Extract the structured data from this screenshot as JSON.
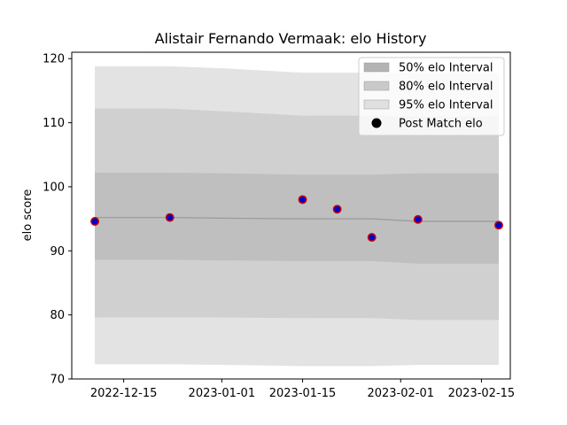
{
  "chart_data": {
    "type": "area",
    "title": "Alistair Fernando Vermaak: elo History",
    "xlabel": "",
    "ylabel": "elo score",
    "x_dates": [
      "2022-12-10",
      "2022-12-23",
      "2023-01-01",
      "2023-01-15",
      "2023-01-21",
      "2023-01-27",
      "2023-02-04",
      "2023-02-18"
    ],
    "xtick_labels": [
      "2022-12-15",
      "2023-01-01",
      "2023-01-15",
      "2023-02-01",
      "2023-02-15"
    ],
    "ylim": [
      70,
      121
    ],
    "yticks": [
      70,
      80,
      90,
      100,
      110,
      120
    ],
    "grid": false,
    "legend_position": "top-right",
    "series": [
      {
        "name": "95% elo Interval",
        "kind": "band",
        "color": "#e3e3e3",
        "lower": [
          72.3,
          72.3,
          72.2,
          72.0,
          72.0,
          72.0,
          72.2,
          72.2
        ],
        "upper": [
          118.8,
          118.8,
          118.5,
          117.8,
          117.8,
          117.8,
          117.7,
          117.7
        ]
      },
      {
        "name": "80% elo Interval",
        "kind": "band",
        "color": "#d0d0d0",
        "lower": [
          79.6,
          79.6,
          79.6,
          79.5,
          79.5,
          79.5,
          79.2,
          79.2
        ],
        "upper": [
          112.2,
          112.2,
          111.8,
          111.1,
          111.1,
          111.1,
          111.0,
          111.0
        ]
      },
      {
        "name": "50% elo Interval",
        "kind": "band",
        "color": "#bfbfbf",
        "lower": [
          88.6,
          88.6,
          88.5,
          88.4,
          88.4,
          88.4,
          88.0,
          88.0
        ],
        "upper": [
          102.2,
          102.2,
          102.1,
          101.9,
          101.9,
          101.9,
          102.1,
          102.1
        ]
      },
      {
        "name": "mean",
        "kind": "line",
        "color": "#999999",
        "values": [
          95.2,
          95.2,
          95.1,
          95.0,
          95.0,
          95.0,
          94.6,
          94.6
        ]
      },
      {
        "name": "Post Match elo",
        "kind": "points",
        "color": "#0000cc",
        "edge": "#cc0000",
        "x_dates": [
          "2022-12-10",
          "2022-12-23",
          "2023-01-15",
          "2023-01-21",
          "2023-01-27",
          "2023-02-04",
          "2023-02-18"
        ],
        "values": [
          94.6,
          95.2,
          98.0,
          96.5,
          92.1,
          94.9,
          94.0
        ]
      }
    ],
    "legend": [
      {
        "label": "50% elo Interval",
        "color": "#b3b3b3",
        "kind": "patch"
      },
      {
        "label": "80% elo Interval",
        "color": "#c9c9c9",
        "kind": "patch"
      },
      {
        "label": "95% elo Interval",
        "color": "#e0e0e0",
        "kind": "patch"
      },
      {
        "label": "Post Match elo",
        "color": "#000000",
        "kind": "marker"
      }
    ]
  }
}
